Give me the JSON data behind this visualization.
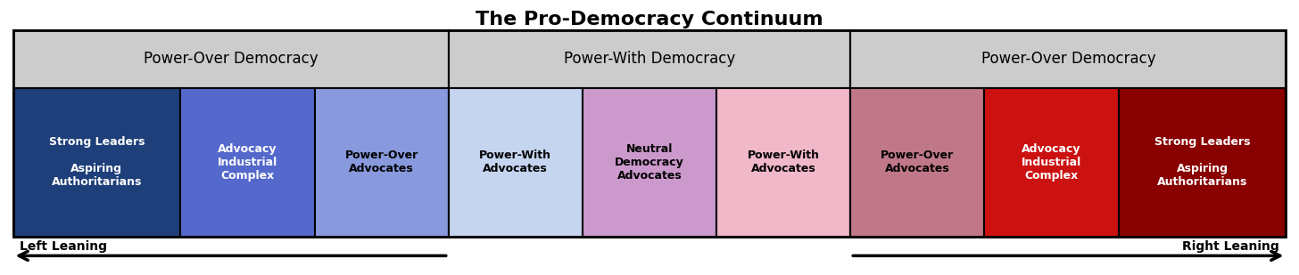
{
  "title": "The Pro-Democracy Continuum",
  "title_fontsize": 16,
  "cells": [
    {
      "label": "Strong Leaders\n\nAspiring\nAuthoritarians",
      "bg": "#1e3f7a",
      "text_color": "#ffffff"
    },
    {
      "label": "Advocacy\nIndustrial\nComplex",
      "bg": "#5568cc",
      "text_color": "#ffffff"
    },
    {
      "label": "Power-Over\nAdvocates",
      "bg": "#8899dd",
      "text_color": "#000000"
    },
    {
      "label": "Power-With\nAdvocates",
      "bg": "#c5d5f0",
      "text_color": "#000000"
    },
    {
      "label": "Neutral\nDemocracy\nAdvocates",
      "bg": "#cc99cc",
      "text_color": "#000000"
    },
    {
      "label": "Power-With\nAdvocates",
      "bg": "#f0b8c8",
      "text_color": "#000000"
    },
    {
      "label": "Power-Over\nAdvocates",
      "bg": "#c07888",
      "text_color": "#000000"
    },
    {
      "label": "Advocacy\nIndustrial\nComplex",
      "bg": "#cc1111",
      "text_color": "#ffffff"
    },
    {
      "label": "Strong Leaders\n\nAspiring\nAuthoritarians",
      "bg": "#880000",
      "text_color": "#ffffff"
    }
  ],
  "header_groups": [
    {
      "cols": [
        0,
        1,
        2
      ],
      "label": "Power-Over Democracy",
      "bg": "#cccccc"
    },
    {
      "cols": [
        3,
        4,
        5
      ],
      "label": "Power-With Democracy",
      "bg": "#cccccc"
    },
    {
      "cols": [
        6,
        7,
        8
      ],
      "label": "Power-Over Democracy",
      "bg": "#cccccc"
    }
  ],
  "col_widths": [
    1.25,
    1.0,
    1.0,
    1.0,
    1.0,
    1.0,
    1.0,
    1.0,
    1.25
  ],
  "left_arrow_label": "Left Leaning",
  "right_arrow_label": "Right Leaning",
  "background_color": "#ffffff",
  "cell_fontsize": 9,
  "header_fontsize": 12
}
